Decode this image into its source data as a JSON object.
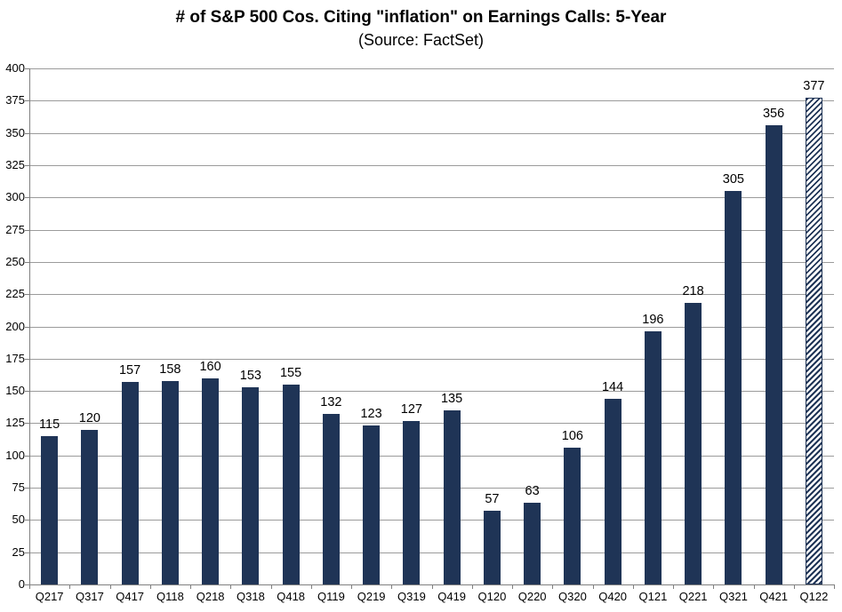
{
  "title": "# of S&P 500 Cos. Citing \"inflation\" on Earnings Calls: 5-Year",
  "subtitle": "(Source: FactSet)",
  "chart_data": {
    "type": "bar",
    "title": "# of S&P 500 Cos. Citing \"inflation\" on Earnings Calls: 5-Year",
    "subtitle": "(Source: FactSet)",
    "categories": [
      "Q217",
      "Q317",
      "Q417",
      "Q118",
      "Q218",
      "Q318",
      "Q418",
      "Q119",
      "Q219",
      "Q319",
      "Q419",
      "Q120",
      "Q220",
      "Q320",
      "Q420",
      "Q121",
      "Q221",
      "Q321",
      "Q421",
      "Q122"
    ],
    "values": [
      115,
      120,
      157,
      158,
      160,
      153,
      155,
      132,
      123,
      127,
      135,
      57,
      63,
      106,
      144,
      196,
      218,
      305,
      356,
      377
    ],
    "data_labels_shown": true,
    "xlabel": "",
    "ylabel": "",
    "ylim": [
      0,
      400
    ],
    "yticks": [
      0,
      25,
      50,
      75,
      100,
      125,
      150,
      175,
      200,
      225,
      250,
      275,
      300,
      325,
      350,
      375,
      400
    ],
    "grid": true,
    "legend": "none",
    "hatched_categories": [
      "Q122"
    ],
    "colors": {
      "bar": "#1f3456",
      "gridline": "#9b9b9b",
      "axis": "#808080",
      "text": "#000000",
      "background": "#ffffff"
    }
  }
}
